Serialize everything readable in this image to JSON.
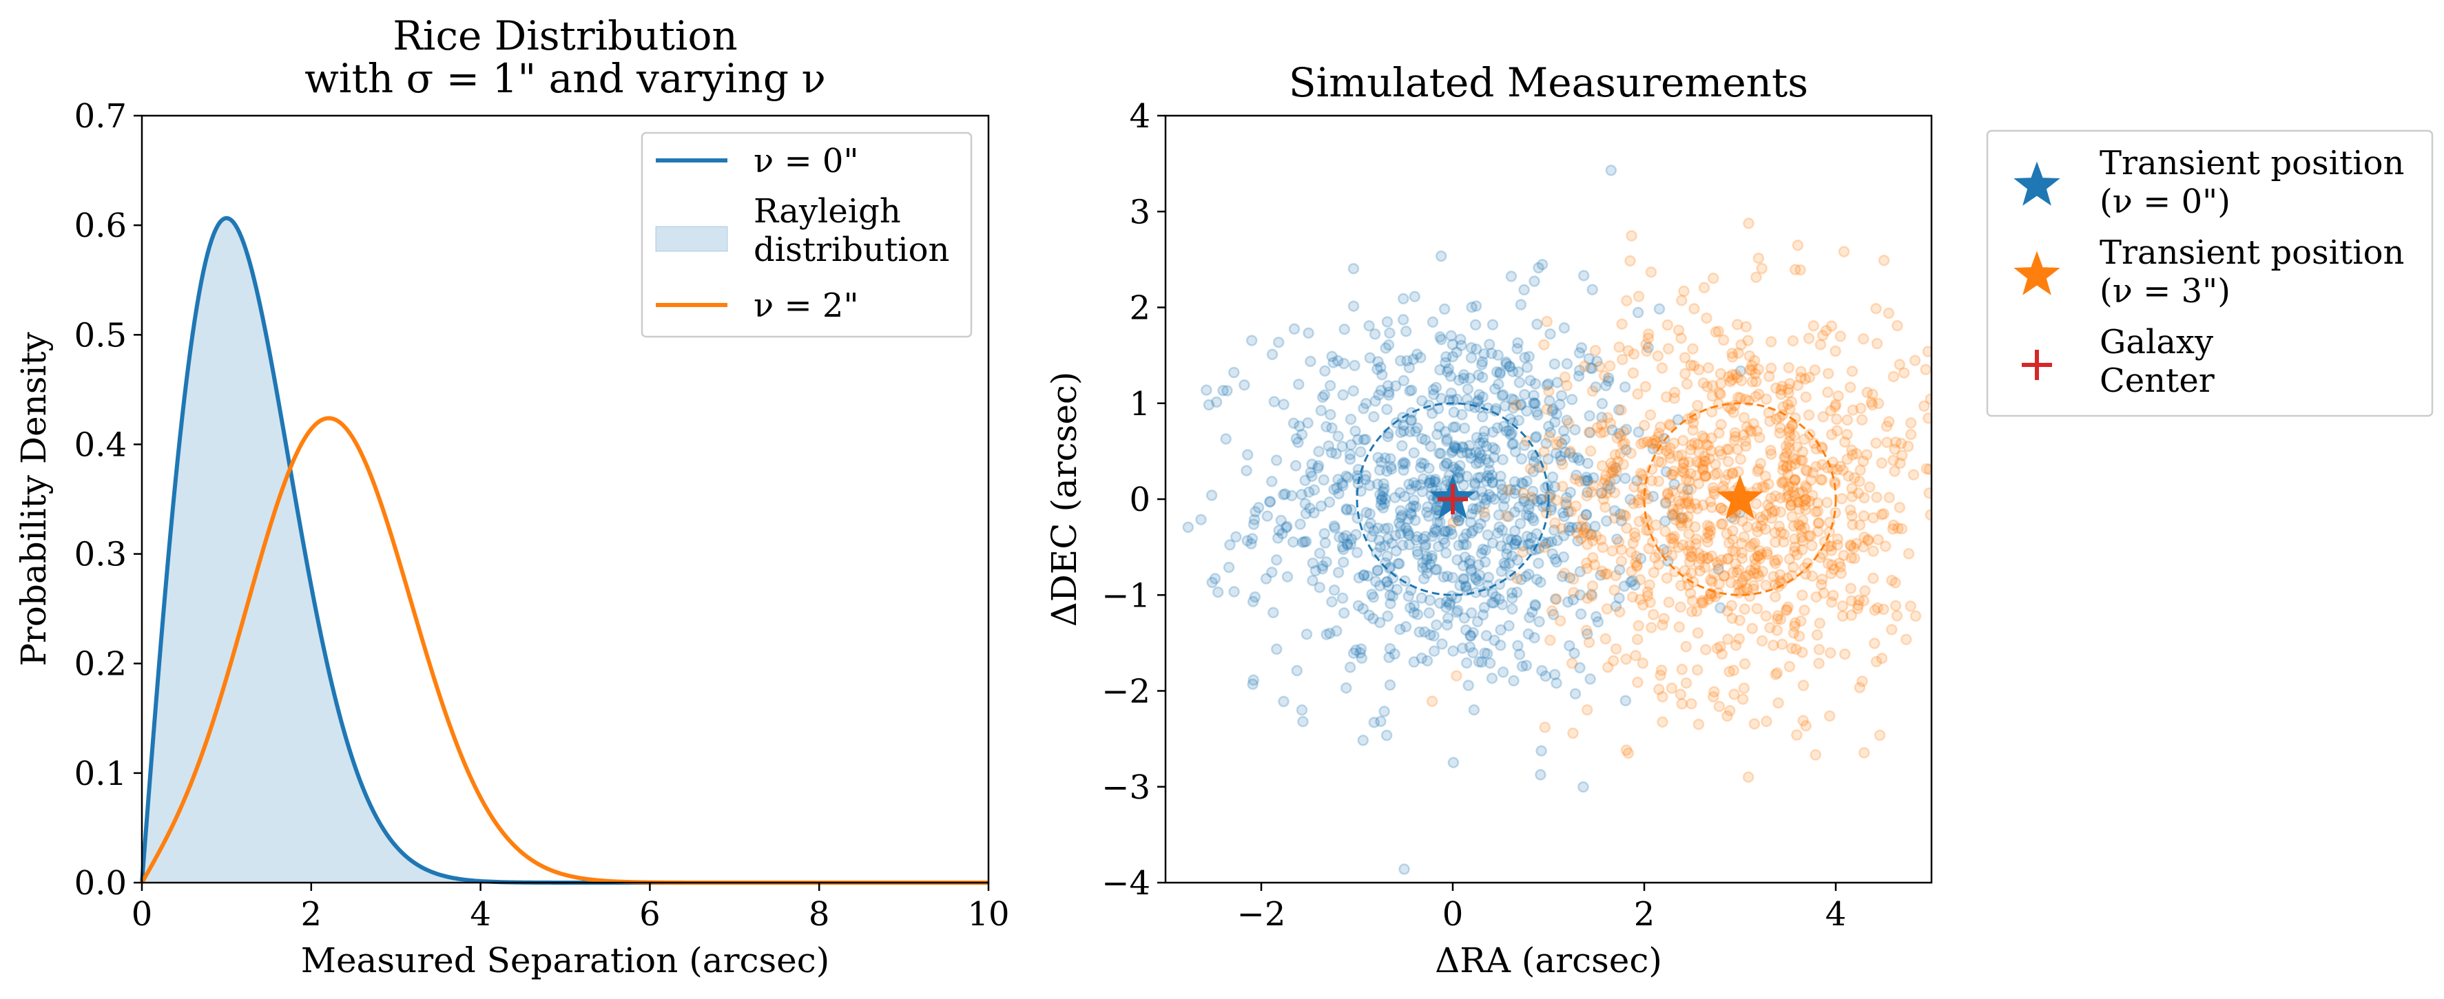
{
  "chart_data": [
    {
      "type": "line",
      "title": "Rice Distribution\nwith σ = 1\" and varying ν",
      "xlabel": "Measured Separation (arcsec)",
      "ylabel": "Probability Density",
      "xlim": [
        0,
        10
      ],
      "ylim": [
        0,
        0.7
      ],
      "xticks": [
        0,
        2,
        4,
        6,
        8,
        10
      ],
      "xtick_labels": [
        "0",
        "2",
        "4",
        "6",
        "8",
        "10"
      ],
      "yticks": [
        0.0,
        0.1,
        0.2,
        0.3,
        0.4,
        0.5,
        0.6,
        0.7
      ],
      "ytick_labels": [
        "0.0",
        "0.1",
        "0.2",
        "0.3",
        "0.4",
        "0.5",
        "0.6",
        "0.7"
      ],
      "grid": false,
      "legend_position": "upper right",
      "sigma": 1,
      "x": [
        0,
        0.25,
        0.5,
        0.75,
        1.0,
        1.25,
        1.5,
        1.75,
        2.0,
        2.25,
        2.5,
        2.75,
        3.0,
        3.25,
        3.5,
        3.75,
        4.0,
        4.5,
        5.0,
        5.5,
        6.0,
        7.0,
        8.0,
        9.0,
        10.0
      ],
      "series": [
        {
          "name": "ν = 0\"",
          "nu": 0,
          "color": "#1f77b4",
          "values": [
            0.0,
            0.242,
            0.441,
            0.567,
            0.607,
            0.572,
            0.487,
            0.379,
            0.271,
            0.179,
            0.11,
            0.062,
            0.033,
            0.016,
            0.008,
            0.003,
            0.001,
            0.0,
            0.0,
            0.0,
            0.0,
            0.0,
            0.0,
            0.0,
            0.0
          ]
        },
        {
          "name": "Rayleigh\ndistribution",
          "style": "filled area (same values as ν = 0\")",
          "color": "#1f77b4",
          "fill_opacity": 0.2
        },
        {
          "name": "ν = 2\"",
          "nu": 2,
          "color": "#ff7f0e",
          "values": [
            0.0,
            0.037,
            0.086,
            0.146,
            0.215,
            0.285,
            0.345,
            0.392,
            0.419,
            0.425,
            0.408,
            0.372,
            0.321,
            0.262,
            0.202,
            0.148,
            0.102,
            0.042,
            0.014,
            0.004,
            0.001,
            0.0,
            0.0,
            0.0,
            0.0
          ]
        }
      ]
    },
    {
      "type": "scatter",
      "title": "Simulated Measurements",
      "xlabel": "ΔRA (arcsec)",
      "ylabel": "ΔDEC (arcsec)",
      "xlim": [
        -3,
        5
      ],
      "ylim": [
        -4,
        4
      ],
      "xticks": [
        -2,
        0,
        2,
        4
      ],
      "xtick_labels": [
        "−2",
        "0",
        "2",
        "4"
      ],
      "yticks": [
        -4,
        -3,
        -2,
        -1,
        0,
        1,
        2,
        3,
        4
      ],
      "ytick_labels": [
        "−4",
        "−3",
        "−2",
        "−1",
        "0",
        "1",
        "2",
        "3",
        "4"
      ],
      "grid": false,
      "legend_position": "outside upper right",
      "scatter_clouds": [
        {
          "center": [
            0,
            0
          ],
          "sigma": 1,
          "count": 1000,
          "color": "#1f77b4",
          "alpha": 0.18
        },
        {
          "center": [
            3,
            0
          ],
          "sigma": 1,
          "count": 1000,
          "color": "#ff7f0e",
          "alpha": 0.18
        }
      ],
      "circles": [
        {
          "center": [
            0,
            0
          ],
          "radius": 1,
          "color": "#1f77b4",
          "style": "dashed"
        },
        {
          "center": [
            3,
            0
          ],
          "radius": 1,
          "color": "#ff7f0e",
          "style": "dashed"
        }
      ],
      "markers": [
        {
          "label": "Transient position\n(ν = 0\")",
          "x": 0,
          "y": 0,
          "marker": "star",
          "color": "#1f77b4"
        },
        {
          "label": "Transient position\n(ν = 3\")",
          "x": 3,
          "y": 0,
          "marker": "star",
          "color": "#ff7f0e"
        },
        {
          "label": "Galaxy\nCenter",
          "x": 0,
          "y": 0,
          "marker": "plus",
          "color": "#d62728"
        }
      ]
    }
  ]
}
